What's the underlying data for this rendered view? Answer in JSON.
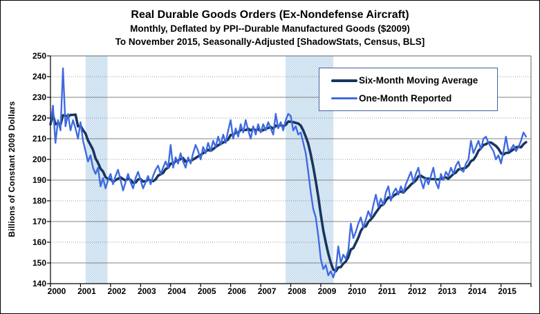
{
  "title": {
    "line1": "Real Durable Goods Orders (Ex-Nondefense Aircraft)",
    "line2": "Monthly, Deflated by PPI--Durable Manufactured Goods ($2009)",
    "line3": "To November 2015, Seasonally-Adjusted [ShadowStats, Census, BLS]"
  },
  "colors": {
    "six_month_line": "#17355E",
    "one_month_line": "#3F6BE0",
    "recession_band_base": "#BDD7EA",
    "recession_band_light": "#E9F2F9",
    "grid_solid": "#808080",
    "grid_dotted": "#9A9A9A",
    "plot_border": "#666666",
    "axis": "#000000",
    "legend_border": "#44609A"
  },
  "y_axis": {
    "title": "Billions of Constant 2009 Dollars",
    "tick_labels": [
      "250",
      "240",
      "230",
      "220",
      "210",
      "200",
      "190",
      "180",
      "170",
      "160",
      "150",
      "140"
    ],
    "min": 140,
    "max": 250,
    "step": 10
  },
  "x_axis": {
    "labels": [
      "2000",
      "2001",
      "2002",
      "2003",
      "2004",
      "2005",
      "2006",
      "2007",
      "2008",
      "2009",
      "2010",
      "2011",
      "2012",
      "2013",
      "2014",
      "2015"
    ]
  },
  "chart_data": {
    "type": "line",
    "title": "Real Durable Goods Orders (Ex-Nondefense Aircraft)",
    "subtitle": "Monthly, Deflated by PPI--Durable Manufactured Goods ($2009)",
    "footnote": "To November 2015, Seasonally-Adjusted [ShadowStats, Census, BLS]",
    "ylabel": "Billions of Constant 2009 Dollars",
    "ylim": [
      140,
      250
    ],
    "xlim_years": [
      2000,
      2016
    ],
    "x_start": "2000-01",
    "x_end": "2015-11",
    "x_frequency": "monthly",
    "grid": "horizontal",
    "legend_position": "top-right",
    "recession_bands": [
      {
        "start": 2001.17,
        "end": 2001.9
      },
      {
        "start": 2007.83,
        "end": 2009.42
      }
    ],
    "legend": [
      {
        "label": "Six-Month Moving Average",
        "color": "#17355E",
        "thickness": 4
      },
      {
        "label": "One-Month Reported",
        "color": "#3F6BE0",
        "thickness": 3
      }
    ],
    "series": [
      {
        "name": "One-Month Reported",
        "color": "#3F6BE0",
        "values": [
          217,
          226,
          208,
          219,
          214,
          244,
          216,
          222,
          214,
          219,
          215,
          210,
          218,
          209,
          204,
          199,
          202,
          196,
          193,
          196,
          187,
          191,
          186,
          190,
          193,
          188,
          192,
          195,
          190,
          185,
          189,
          193,
          189,
          186,
          191,
          194,
          190,
          186,
          189,
          192,
          188,
          192,
          195,
          197,
          193,
          196,
          199,
          196,
          207,
          196,
          201,
          198,
          203,
          199,
          196,
          201,
          198,
          203,
          207,
          204,
          200,
          206,
          203,
          208,
          204,
          209,
          206,
          211,
          207,
          212,
          208,
          214,
          219,
          210,
          215,
          211,
          217,
          213,
          219,
          214,
          210,
          216,
          212,
          217,
          213,
          217,
          214,
          218,
          215,
          212,
          222,
          215,
          218,
          214,
          219,
          222,
          221,
          214,
          216,
          212,
          213,
          208,
          203,
          194,
          184,
          176,
          172,
          163,
          152,
          147,
          149,
          144,
          146,
          143,
          147,
          158,
          150,
          154,
          152,
          156,
          169,
          162,
          165,
          169,
          172,
          167,
          171,
          175,
          172,
          178,
          183,
          177,
          181,
          178,
          184,
          187,
          180,
          184,
          186,
          183,
          187,
          184,
          188,
          191,
          194,
          189,
          193,
          196,
          190,
          186,
          191,
          188,
          192,
          196,
          189,
          186,
          193,
          190,
          194,
          192,
          196,
          193,
          197,
          199,
          195,
          194,
          198,
          200,
          209,
          203,
          206,
          209,
          205,
          210,
          211,
          208,
          206,
          204,
          200,
          202,
          198,
          204,
          211,
          204,
          205,
          207,
          204,
          206,
          209,
          213,
          211
        ]
      },
      {
        "name": "Six-Month Moving Average",
        "color": "#17355E",
        "derived": "trailing 6-month mean of One-Month Reported values"
      }
    ]
  }
}
